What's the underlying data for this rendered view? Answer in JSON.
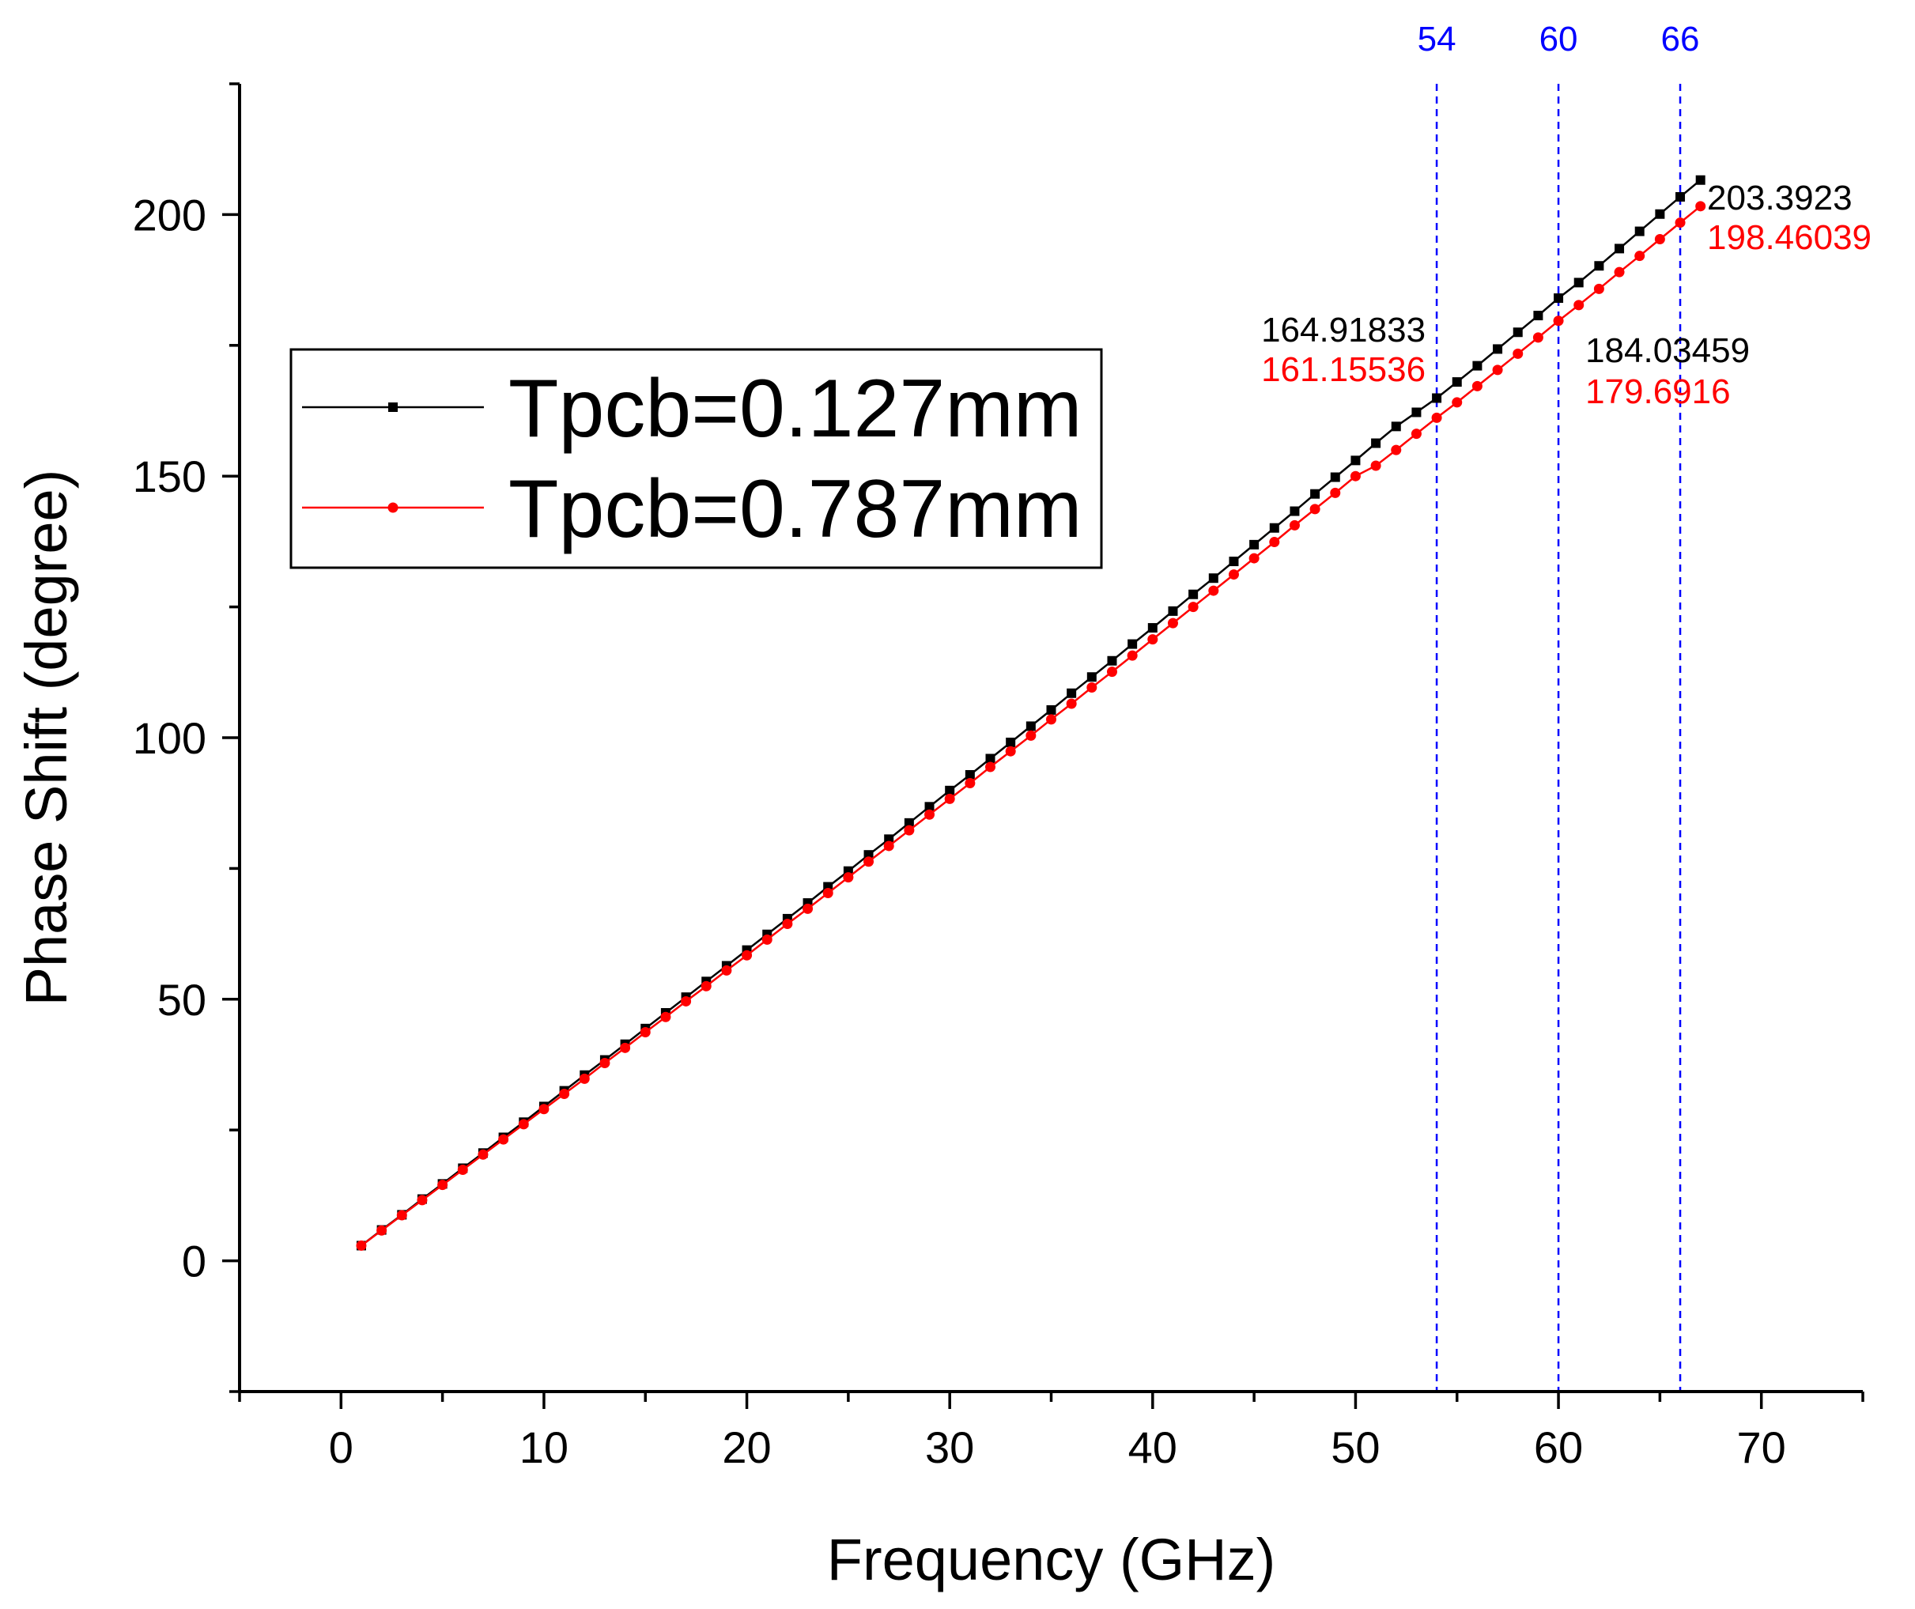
{
  "chart_data": {
    "type": "line",
    "title": "",
    "xlabel": "Frequency (GHz)",
    "ylabel": "Phase Shift (degree)",
    "xlim": [
      -5,
      75
    ],
    "ylim": [
      -25,
      225
    ],
    "x_ticks": [
      0,
      10,
      20,
      30,
      40,
      50,
      60,
      70
    ],
    "y_ticks": [
      0,
      50,
      100,
      150,
      200
    ],
    "x_tick_labels": [
      "0",
      "10",
      "20",
      "30",
      "40",
      "50",
      "60",
      "70"
    ],
    "y_tick_labels": [
      "0",
      "50",
      "100",
      "150",
      "200"
    ],
    "grid": false,
    "legend_position": "upper-left",
    "x": [
      1,
      2,
      3,
      4,
      5,
      6,
      7,
      8,
      9,
      10,
      11,
      12,
      13,
      14,
      15,
      16,
      17,
      18,
      19,
      20,
      21,
      22,
      23,
      24,
      25,
      26,
      27,
      28,
      29,
      30,
      31,
      32,
      33,
      34,
      35,
      36,
      37,
      38,
      39,
      40,
      41,
      42,
      43,
      44,
      45,
      46,
      47,
      48,
      49,
      50,
      51,
      52,
      53,
      54,
      55,
      56,
      57,
      58,
      59,
      60,
      61,
      62,
      63,
      64,
      65,
      66,
      67
    ],
    "series": [
      {
        "name": "Tpcb=0.127mm",
        "color": "#000000",
        "marker": "square",
        "values": [
          2.9,
          5.9,
          8.8,
          11.8,
          14.7,
          17.7,
          20.6,
          23.6,
          26.5,
          29.5,
          32.5,
          35.5,
          38.4,
          41.4,
          44.4,
          47.4,
          50.4,
          53.4,
          56.4,
          59.4,
          62.4,
          65.4,
          68.4,
          71.5,
          74.5,
          77.6,
          80.6,
          83.7,
          86.8,
          89.9,
          92.9,
          96.0,
          99.1,
          102.2,
          105.3,
          108.5,
          111.6,
          114.7,
          117.9,
          121.0,
          124.2,
          127.4,
          130.5,
          133.7,
          136.9,
          140.1,
          143.3,
          146.6,
          149.8,
          153.0,
          156.3,
          159.5,
          162.2,
          164.92,
          168.0,
          171.1,
          174.3,
          177.5,
          180.7,
          184.03,
          187.0,
          190.2,
          193.5,
          196.8,
          200.1,
          203.39,
          206.6
        ]
      },
      {
        "name": "Tpcb=0.787mm",
        "color": "#ff0000",
        "marker": "circle",
        "values": [
          2.9,
          5.8,
          8.7,
          11.6,
          14.5,
          17.4,
          20.3,
          23.2,
          26.1,
          29.0,
          31.9,
          34.8,
          37.8,
          40.7,
          43.7,
          46.6,
          49.6,
          52.5,
          55.5,
          58.4,
          61.4,
          64.4,
          67.3,
          70.3,
          73.3,
          76.3,
          79.3,
          82.3,
          85.3,
          88.3,
          91.3,
          94.4,
          97.4,
          100.4,
          103.5,
          106.5,
          109.6,
          112.6,
          115.7,
          118.8,
          121.9,
          125.0,
          128.1,
          131.2,
          134.3,
          137.4,
          140.6,
          143.7,
          146.8,
          150.0,
          152.0,
          155.0,
          158.1,
          161.16,
          164.1,
          167.2,
          170.3,
          173.4,
          176.5,
          179.69,
          182.7,
          185.8,
          189.0,
          192.1,
          195.3,
          198.46,
          201.6
        ]
      }
    ],
    "vlines": [
      {
        "x": 54,
        "label": "54",
        "color": "#0000ff"
      },
      {
        "x": 60,
        "label": "60",
        "color": "#0000ff"
      },
      {
        "x": 66,
        "label": "66",
        "color": "#0000ff"
      }
    ],
    "annotations": [
      {
        "text": "164.91833",
        "color": "#000000",
        "x": 54,
        "y": 164.91833,
        "anchor": "end",
        "row": 0
      },
      {
        "text": "161.15536",
        "color": "#ff0000",
        "x": 54,
        "y": 161.15536,
        "anchor": "end",
        "row": 1
      },
      {
        "text": "184.03459",
        "color": "#000000",
        "x": 60,
        "y": 184.03459,
        "anchor": "start",
        "row": 0
      },
      {
        "text": "179.6916",
        "color": "#ff0000",
        "x": 60,
        "y": 179.6916,
        "anchor": "start",
        "row": 1
      },
      {
        "text": "203.3923",
        "color": "#000000",
        "x": 66,
        "y": 203.3923,
        "anchor": "start",
        "row": 0
      },
      {
        "text": "198.46039",
        "color": "#ff0000",
        "x": 66,
        "y": 198.46039,
        "anchor": "start",
        "row": 1
      }
    ]
  }
}
